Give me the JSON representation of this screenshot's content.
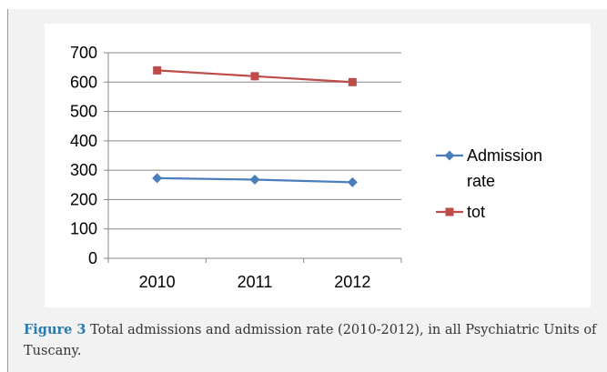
{
  "chart_data": {
    "type": "line",
    "categories": [
      "2010",
      "2011",
      "2012"
    ],
    "series": [
      {
        "name": "Admission rate",
        "values": [
          273,
          268,
          259
        ],
        "color": "#4a7ebb",
        "marker": "diamond"
      },
      {
        "name": "tot",
        "values": [
          640,
          620,
          600
        ],
        "color": "#be4b48",
        "marker": "square"
      }
    ],
    "title": "",
    "xlabel": "",
    "ylabel": "",
    "ylim": [
      0,
      700
    ],
    "yticks": [
      0,
      100,
      200,
      300,
      400,
      500,
      600,
      700
    ],
    "grid": true,
    "legend": "right"
  },
  "caption": {
    "label": "Figure 3",
    "text": "Total admissions and admission rate (2010-2012), in all Psychiatric Units of Tuscany."
  },
  "colors": {
    "caption_label": "#2a7ab0",
    "panel_background": "#f2f2f2"
  }
}
